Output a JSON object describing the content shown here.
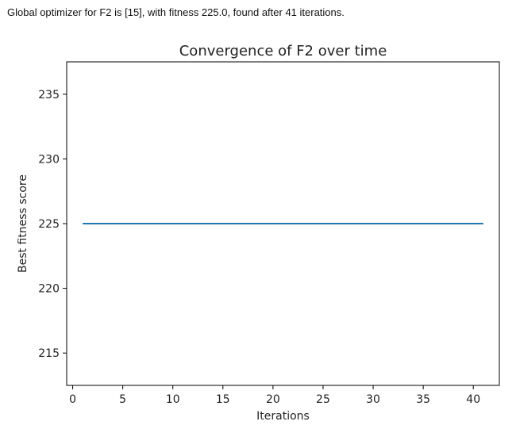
{
  "output_text": "Global optimizer for F2 is [15], with fitness 225.0, found after 41 iterations.",
  "chart_data": {
    "type": "line",
    "title": "Convergence of F2 over time",
    "xlabel": "Iterations",
    "ylabel": "Best fitness score",
    "xlim": [
      -0.6,
      42.6
    ],
    "ylim": [
      212.5,
      237.5
    ],
    "xticks": [
      0,
      5,
      10,
      15,
      20,
      25,
      30,
      35,
      40
    ],
    "yticks": [
      215,
      220,
      225,
      230,
      235
    ],
    "grid": false,
    "series": [
      {
        "color": "#1f77b4",
        "x": [
          1,
          41
        ],
        "y": [
          225.0,
          225.0
        ]
      }
    ]
  }
}
